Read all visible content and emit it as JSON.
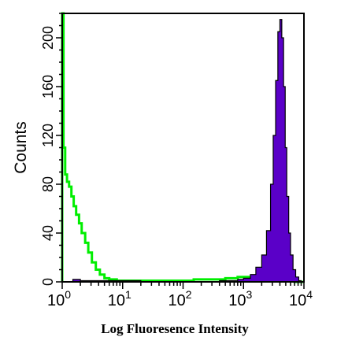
{
  "chart_data": {
    "type": "area",
    "xlabel": "Log Fluoresence Intensity",
    "ylabel": "Counts",
    "x_scale": "log",
    "xlim": [
      1,
      10000
    ],
    "ylim": [
      0,
      220
    ],
    "x_ticks": [
      {
        "base": "10",
        "exp": "0",
        "value": 1
      },
      {
        "base": "10",
        "exp": "1",
        "value": 10
      },
      {
        "base": "10",
        "exp": "2",
        "value": 100
      },
      {
        "base": "10",
        "exp": "3",
        "value": 1000
      },
      {
        "base": "10",
        "exp": "4",
        "value": 10000
      }
    ],
    "y_ticks": [
      "0",
      "40",
      "80",
      "120",
      "160",
      "200"
    ],
    "y_tick_values": [
      0,
      40,
      80,
      120,
      160,
      200
    ],
    "grid": false,
    "series": [
      {
        "color": "#00ee00",
        "fill": "none",
        "x": [
          1.0,
          1.05,
          1.12,
          1.2,
          1.3,
          1.42,
          1.55,
          1.7,
          1.9,
          2.1,
          2.4,
          2.7,
          3.1,
          3.6,
          4.2,
          5.0,
          6.0,
          8.0,
          12,
          20,
          40,
          80,
          150,
          300,
          500,
          800,
          1200,
          2000,
          3000,
          5000,
          7000,
          10000
        ],
        "y": [
          220,
          110,
          88,
          82,
          78,
          70,
          62,
          55,
          48,
          40,
          32,
          24,
          16,
          10,
          6,
          3,
          2,
          1,
          1,
          1,
          1,
          1,
          2,
          2,
          3,
          4,
          4,
          3,
          2,
          1,
          0,
          0
        ]
      },
      {
        "color": "#5a00c8",
        "fill": "#5a00c8",
        "x": [
          1.0,
          1.5,
          2,
          5,
          20,
          100,
          400,
          800,
          1000,
          1300,
          1600,
          2000,
          2400,
          2800,
          3100,
          3400,
          3700,
          4000,
          4300,
          4600,
          4900,
          5200,
          5600,
          6000,
          6600,
          7300,
          8200,
          9000,
          10000
        ],
        "y": [
          0,
          2,
          1,
          1,
          0,
          0,
          1,
          2,
          3,
          6,
          12,
          22,
          42,
          80,
          120,
          165,
          205,
          215,
          200,
          160,
          110,
          70,
          40,
          22,
          10,
          4,
          1,
          0,
          0
        ]
      }
    ]
  }
}
